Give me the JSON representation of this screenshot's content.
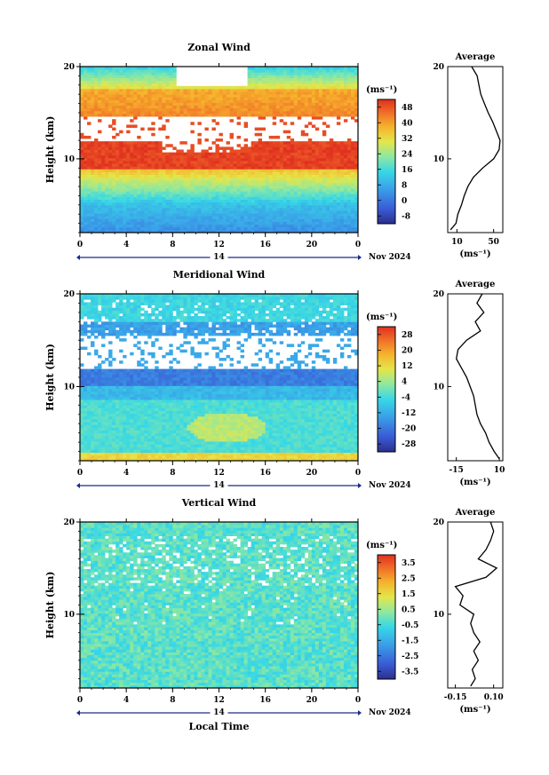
{
  "figure": {
    "date_label": "Nov 2024",
    "day_label": "14",
    "xlabel": "Local Time"
  },
  "chart_data": [
    {
      "type": "heatmap",
      "title": "Zonal Wind",
      "ylabel": "Height (km)",
      "x_ticks": [
        "0",
        "4",
        "8",
        "12",
        "16",
        "20",
        "0"
      ],
      "y_ticks": [
        "10",
        "20"
      ],
      "ylim": [
        2,
        20
      ],
      "colorbar": {
        "unit_label": "(ms⁻¹)",
        "ticks": [
          "-8",
          "0",
          "8",
          "16",
          "24",
          "32",
          "40",
          "48"
        ],
        "range": [
          -12,
          52
        ]
      },
      "profile": {
        "title": "Average",
        "xlabel": "(ms⁻¹)",
        "x_ticks": [
          "10",
          "50"
        ],
        "xlim": [
          0,
          60
        ],
        "heights": [
          2.3,
          3,
          4,
          5,
          6,
          7,
          8,
          9,
          10,
          11,
          12,
          13,
          14,
          15,
          16,
          17,
          18,
          19,
          20
        ],
        "values": [
          3,
          9,
          11,
          15,
          18,
          22,
          28,
          38,
          50,
          56,
          57,
          53,
          49,
          44,
          40,
          36,
          34,
          32,
          26
        ]
      }
    },
    {
      "type": "heatmap",
      "title": "Meridional Wind",
      "ylabel": "Height (km)",
      "x_ticks": [
        "0",
        "4",
        "8",
        "12",
        "16",
        "20",
        "0"
      ],
      "y_ticks": [
        "10",
        "20"
      ],
      "ylim": [
        2,
        20
      ],
      "colorbar": {
        "unit_label": "(ms⁻¹)",
        "ticks": [
          "-28",
          "-20",
          "-12",
          "-4",
          "4",
          "12",
          "20",
          "28"
        ],
        "range": [
          -32,
          32
        ]
      },
      "profile": {
        "title": "Average",
        "xlabel": "(ms⁻¹)",
        "x_ticks": [
          "-15",
          "10"
        ],
        "xlim": [
          -20,
          12
        ],
        "heights": [
          2.2,
          3,
          4,
          5,
          6,
          7,
          8,
          9,
          10,
          11,
          12,
          13,
          14,
          15,
          16,
          17,
          18,
          19,
          20
        ],
        "values": [
          10,
          7,
          4,
          2,
          -1,
          -3,
          -4,
          -5,
          -7,
          -9,
          -12,
          -15,
          -14,
          -9,
          -1,
          -4,
          1,
          -3,
          0
        ]
      }
    },
    {
      "type": "heatmap",
      "title": "Vertical Wind",
      "ylabel": "Height (km)",
      "x_ticks": [
        "0",
        "4",
        "8",
        "12",
        "16",
        "20",
        "0"
      ],
      "y_ticks": [
        "10",
        "20"
      ],
      "ylim": [
        2,
        20
      ],
      "colorbar": {
        "unit_label": "(ms⁻¹)",
        "ticks": [
          "-3.5",
          "-2.5",
          "-1.5",
          "-0.5",
          "0.5",
          "1.5",
          "2.5",
          "3.5"
        ],
        "range": [
          -4,
          4
        ]
      },
      "profile": {
        "title": "Average",
        "xlabel": "(ms⁻¹)",
        "x_ticks": [
          "-0.15",
          "0.10"
        ],
        "xlim": [
          -0.2,
          0.16
        ],
        "heights": [
          2.2,
          3,
          4,
          5,
          6,
          7,
          8,
          9,
          10,
          11,
          12,
          13,
          14,
          15,
          16,
          17,
          18,
          19,
          20
        ],
        "values": [
          -0.05,
          -0.02,
          -0.04,
          0.0,
          -0.03,
          0.01,
          -0.03,
          -0.05,
          -0.03,
          -0.12,
          -0.1,
          -0.15,
          0.05,
          0.12,
          0.0,
          0.05,
          0.08,
          0.1,
          0.08
        ]
      }
    }
  ]
}
